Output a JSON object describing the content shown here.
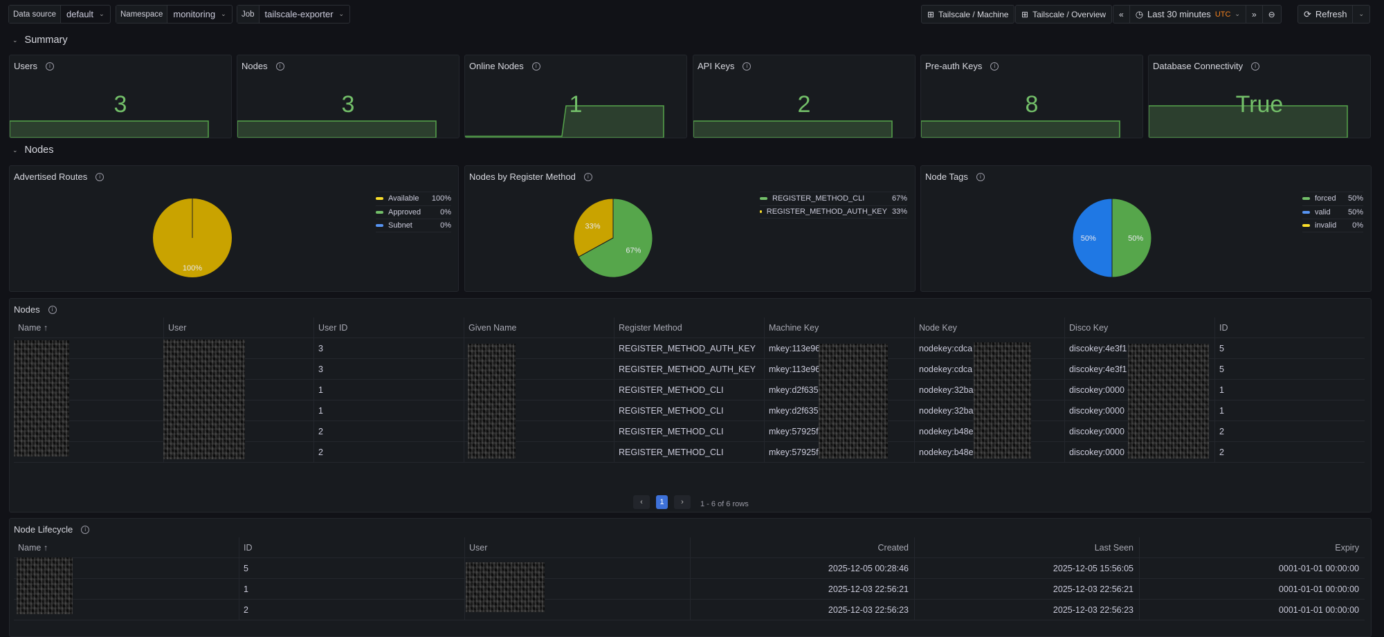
{
  "variables": [
    {
      "label": "Data source",
      "value": "default"
    },
    {
      "label": "Namespace",
      "value": "monitoring"
    },
    {
      "label": "Job",
      "value": "tailscale-exporter"
    }
  ],
  "toolbar": {
    "link1": "Tailscale / Machine",
    "link2": "Tailscale / Overview",
    "time_range": "Last 30 minutes",
    "timezone": "UTC",
    "refresh": "Refresh",
    "icons": [
      "dashboard-grid-icon",
      "chevron-double-left-icon",
      "clock-icon",
      "chevron-double-right-icon",
      "zoom-out-icon",
      "refresh-icon"
    ]
  },
  "rows": {
    "summary": "Summary",
    "nodes": "Nodes"
  },
  "stats": [
    {
      "title": "Users",
      "value": "3",
      "spark": "flat"
    },
    {
      "title": "Nodes",
      "value": "3",
      "spark": "flat"
    },
    {
      "title": "Online Nodes",
      "value": "1",
      "spark": "step"
    },
    {
      "title": "API Keys",
      "value": "2",
      "spark": "flat"
    },
    {
      "title": "Pre-auth Keys",
      "value": "8",
      "spark": "flat"
    },
    {
      "title": "Database Connectivity",
      "value": "True",
      "spark": "high"
    }
  ],
  "colors": {
    "green": "#56a64b",
    "yellow": "#c9a300",
    "blue": "#1f78e4",
    "stat_green": "#73bf69"
  },
  "chart_data": [
    {
      "type": "pie",
      "title": "Advertised Routes",
      "legend": "right",
      "series": [
        {
          "name": "Available",
          "value": 100,
          "color": "#c9a300",
          "swatch": "#fade2a"
        },
        {
          "name": "Approved",
          "value": 0,
          "color": "#56a64b",
          "swatch": "#73bf69"
        },
        {
          "name": "Subnet",
          "value": 0,
          "color": "#1f78e4",
          "swatch": "#5794f2"
        }
      ]
    },
    {
      "type": "pie",
      "title": "Nodes by Register Method",
      "legend": "right",
      "series": [
        {
          "name": "REGISTER_METHOD_CLI",
          "value": 67,
          "color": "#56a64b",
          "swatch": "#73bf69"
        },
        {
          "name": "REGISTER_METHOD_AUTH_KEY",
          "value": 33,
          "color": "#c9a300",
          "swatch": "#fade2a"
        }
      ]
    },
    {
      "type": "pie",
      "title": "Node Tags",
      "legend": "right",
      "series": [
        {
          "name": "forced",
          "value": 50,
          "color": "#56a64b",
          "swatch": "#73bf69"
        },
        {
          "name": "valid",
          "value": 50,
          "color": "#1f78e4",
          "swatch": "#5794f2"
        },
        {
          "name": "invalid",
          "value": 0,
          "color": "#c9a300",
          "swatch": "#fade2a"
        }
      ]
    }
  ],
  "nodes_table": {
    "title": "Nodes",
    "columns": [
      "Name ↑",
      "User",
      "User ID",
      "Given Name",
      "Register Method",
      "Machine Key",
      "Node Key",
      "Disco Key",
      "ID"
    ],
    "rows": [
      [
        "",
        "",
        "3",
        "",
        "REGISTER_METHOD_AUTH_KEY",
        "mkey:113e96 ···· 9a1080",
        "nodekey:cdca ···· c781587",
        "discokey:4e3f1 ···· ac",
        "5"
      ],
      [
        "",
        "",
        "3",
        "",
        "REGISTER_METHOD_AUTH_KEY",
        "mkey:113e96 ···· 9a1080",
        "nodekey:cdca ···· c781587",
        "discokey:4e3f1 ···· ac",
        "5"
      ],
      [
        "",
        "",
        "1",
        "",
        "REGISTER_METHOD_CLI",
        "mkey:d2f635 ···· 22556",
        "nodekey:32ba ···· 86bb705",
        "discokey:0000 ···· 0",
        "1"
      ],
      [
        "",
        "",
        "1",
        "",
        "REGISTER_METHOD_CLI",
        "mkey:d2f635 ···· 22556",
        "nodekey:32ba ···· 86bb705",
        "discokey:0000 ···· 0",
        "1"
      ],
      [
        "",
        "",
        "2",
        "",
        "REGISTER_METHOD_CLI",
        "mkey:57925f ···· a6335",
        "nodekey:b48e ···· cdc3fe2f",
        "discokey:0000 ···· 0",
        "2"
      ],
      [
        "",
        "",
        "2",
        "",
        "REGISTER_METHOD_CLI",
        "mkey:57925f ···· a6335",
        "nodekey:b48e ···· cdc3fe2f",
        "discokey:0000 ···· 0",
        "2"
      ]
    ],
    "pagination": {
      "prev": "‹",
      "page": "1",
      "next": "›",
      "summary": "1 - 6 of 6 rows"
    }
  },
  "lifecycle_table": {
    "title": "Node Lifecycle",
    "columns": [
      "Name ↑",
      "ID",
      "User",
      "Created",
      "Last Seen",
      "Expiry"
    ],
    "rows": [
      [
        "",
        "5",
        "",
        "2025-12-05 00:28:46",
        "2025-12-05 15:56:05",
        "0001-01-01 00:00:00"
      ],
      [
        "",
        "1",
        "",
        "2025-12-03 22:56:21",
        "2025-12-03 22:56:21",
        "0001-01-01 00:00:00"
      ],
      [
        "",
        "2",
        "",
        "2025-12-03 22:56:23",
        "2025-12-03 22:56:23",
        "0001-01-01 00:00:00"
      ]
    ]
  }
}
